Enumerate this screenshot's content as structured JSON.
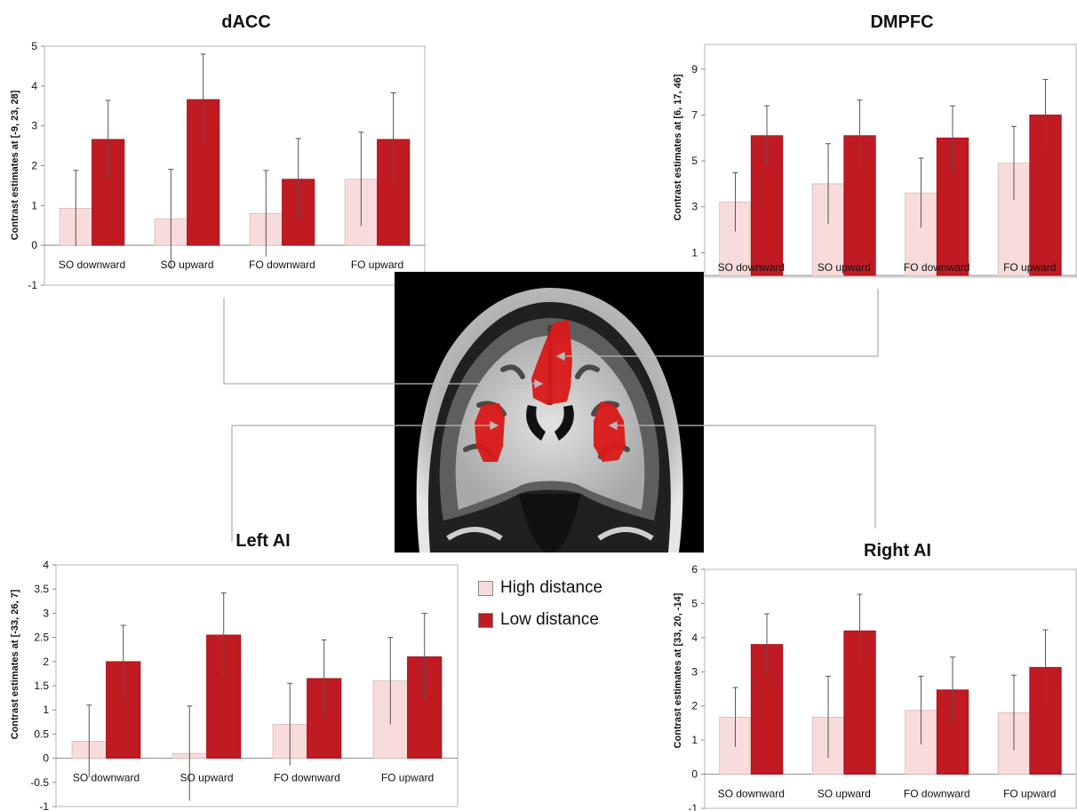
{
  "colors": {
    "high": "#f8dcdc",
    "low": "#c01a23",
    "axis": "#999999",
    "error": "#555555",
    "connector": "#888888"
  },
  "legend": {
    "items": [
      {
        "label": "High distance",
        "color": "#f8dcdc"
      },
      {
        "label": "Low distance",
        "color": "#c01a23"
      }
    ]
  },
  "chart_data": [
    {
      "id": "dacc",
      "type": "bar",
      "title": "dACC",
      "ylabel": "Contrast estimates at [-9, 23, 28]",
      "categories": [
        "SO downward",
        "SO upward",
        "FO downward",
        "FO upward"
      ],
      "ylim": [
        -1,
        5
      ],
      "yticks": [
        "-1",
        "0",
        "1",
        "2",
        "3",
        "4",
        "5"
      ],
      "series": [
        {
          "name": "High distance",
          "values": [
            0.93,
            0.66,
            0.8,
            1.66
          ],
          "errors": [
            0.95,
            1.25,
            1.08,
            1.18
          ]
        },
        {
          "name": "Low distance",
          "values": [
            2.66,
            3.66,
            1.66,
            2.66
          ],
          "errors": [
            0.98,
            1.14,
            1.02,
            1.17
          ]
        }
      ],
      "legend": "shared",
      "grid": false
    },
    {
      "id": "dmpfc",
      "type": "bar",
      "title": "DMPFC",
      "ylabel": "Contrast estimates at [6, 17, 46]",
      "categories": [
        "SO downward",
        "SO upward",
        "FO downward",
        "FO upward"
      ],
      "ylim": [
        -1,
        10
      ],
      "yticks": [
        "1",
        "3",
        "5",
        "7",
        "9"
      ],
      "series": [
        {
          "name": "High distance",
          "values": [
            3.2,
            4.0,
            3.6,
            4.9
          ],
          "errors": [
            1.28,
            1.75,
            1.52,
            1.6
          ]
        },
        {
          "name": "Low distance",
          "values": [
            6.1,
            6.1,
            6.0,
            7.0
          ],
          "errors": [
            1.3,
            1.55,
            1.4,
            1.55
          ]
        }
      ],
      "legend": "shared",
      "grid": false
    },
    {
      "id": "leftai",
      "type": "bar",
      "title": "Left AI",
      "ylabel": "Contrast estimates at [-33, 26, 7]",
      "categories": [
        "SO downward",
        "SO upward",
        "FO downward",
        "FO upward"
      ],
      "ylim": [
        -1,
        4
      ],
      "yticks": [
        "-1",
        "-0.5",
        "0",
        "0.5",
        "1",
        "1.5",
        "2",
        "2.5",
        "3",
        "3.5",
        "4"
      ],
      "series": [
        {
          "name": "High distance",
          "values": [
            0.35,
            0.1,
            0.7,
            1.6
          ],
          "errors": [
            0.75,
            0.98,
            0.85,
            0.9
          ]
        },
        {
          "name": "Low distance",
          "values": [
            2.0,
            2.55,
            1.65,
            2.1
          ],
          "errors": [
            0.75,
            0.87,
            0.8,
            0.9
          ]
        }
      ],
      "legend": "shared",
      "grid": false
    },
    {
      "id": "rightai",
      "type": "bar",
      "title": "Right AI",
      "ylabel": "Contrast estimates at [33, 20, -14]",
      "categories": [
        "SO downward",
        "SO upward",
        "FO downward",
        "FO upward"
      ],
      "ylim": [
        -1,
        6
      ],
      "yticks": [
        "-1",
        "0",
        "1",
        "2",
        "3",
        "4",
        "5",
        "6"
      ],
      "series": [
        {
          "name": "High distance",
          "values": [
            1.67,
            1.67,
            1.87,
            1.8
          ],
          "errors": [
            0.87,
            1.2,
            1.0,
            1.1
          ]
        },
        {
          "name": "Low distance",
          "values": [
            3.8,
            4.2,
            2.47,
            3.13
          ],
          "errors": [
            0.9,
            1.07,
            0.96,
            1.1
          ]
        }
      ],
      "legend": "shared",
      "grid": false
    }
  ]
}
